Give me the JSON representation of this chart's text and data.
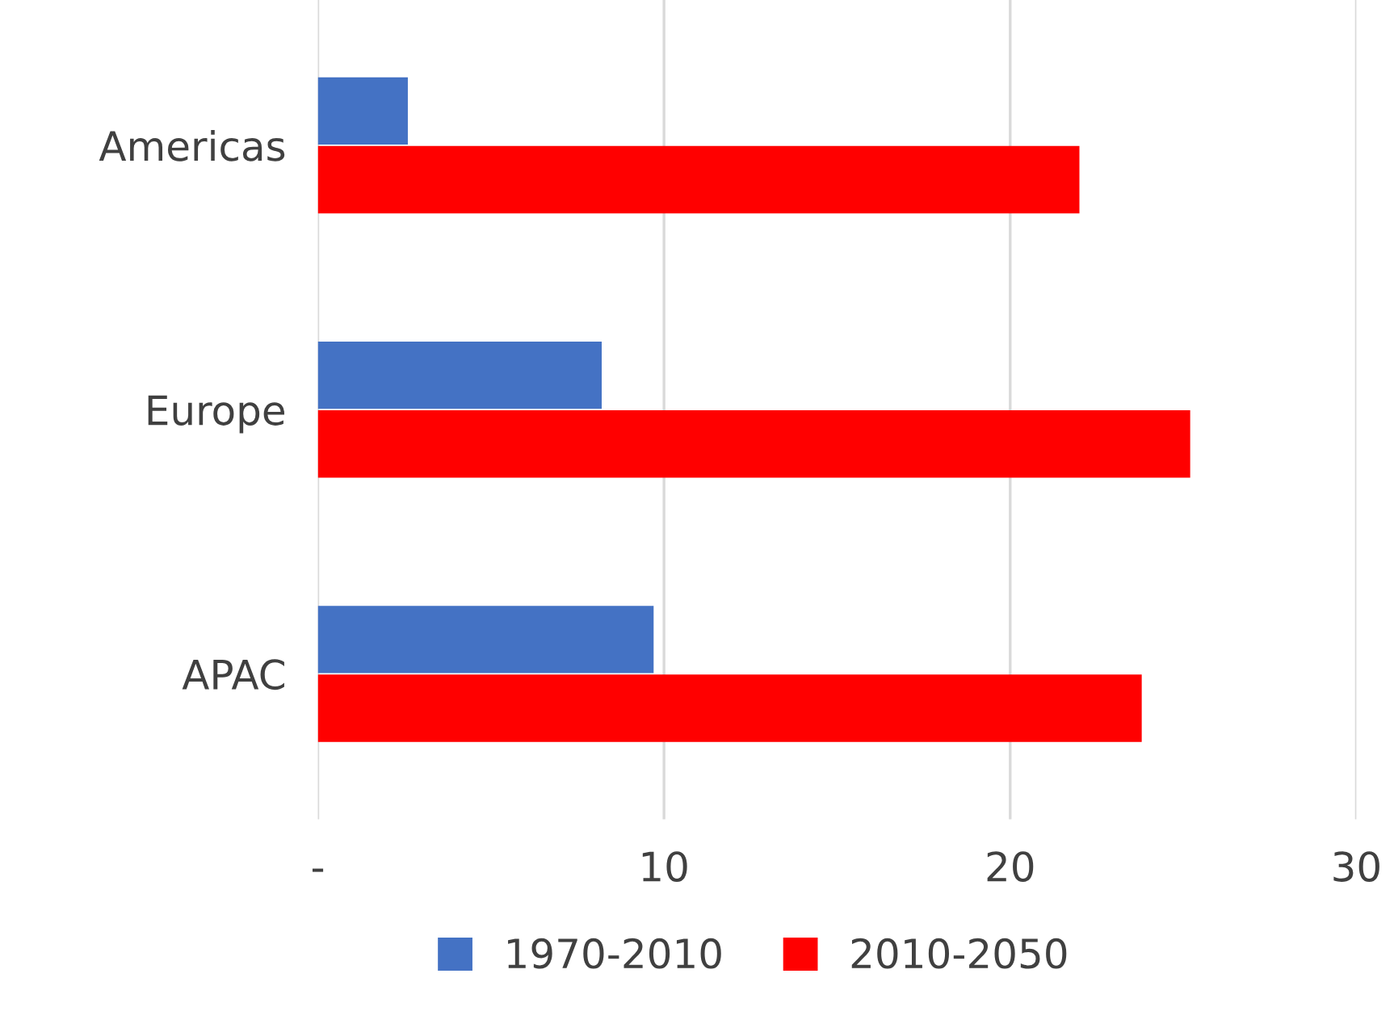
{
  "chart_data": {
    "type": "bar",
    "orientation": "horizontal",
    "categories": [
      "Americas",
      "Europe",
      "APAC"
    ],
    "series": [
      {
        "name": "1970-2010",
        "color": "#4472c4",
        "values": [
          2.6,
          8.2,
          9.7
        ]
      },
      {
        "name": "2010-2050",
        "color": "#ff0000",
        "values": [
          22.0,
          25.2,
          23.8
        ]
      }
    ],
    "xlim": [
      0,
      30
    ],
    "xticks": [
      {
        "value": 0,
        "label": "-"
      },
      10,
      20,
      30
    ],
    "grid": "x",
    "legend": "bottom"
  }
}
